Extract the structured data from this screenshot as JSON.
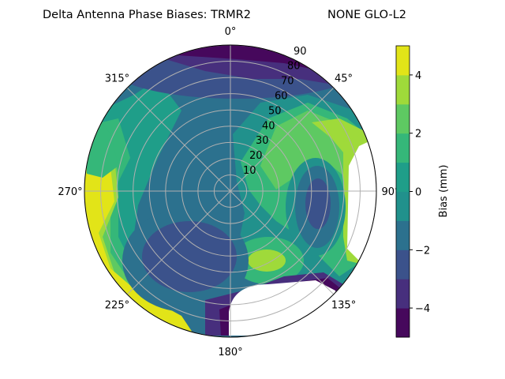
{
  "chart_data": {
    "type": "heatmap",
    "subtype": "polar filled contour",
    "title_left": "Delta Antenna Phase Biases: TRMR2",
    "title_right": "NONE GLO-L2",
    "angular_ticks": [
      "0°",
      "45°",
      "90°",
      "135°",
      "180°",
      "225°",
      "270°",
      "315°"
    ],
    "angular_direction": "clockwise, 0° at top",
    "radial_ticks": [
      10,
      20,
      30,
      40,
      50,
      60,
      70,
      80,
      90
    ],
    "radial_range": [
      0,
      90
    ],
    "grid": true,
    "colorbar": {
      "label": "Bias (mm)",
      "range": [
        -5,
        5
      ],
      "levels": [
        -5,
        -4,
        -3,
        -2,
        -1,
        0,
        1,
        2,
        3,
        4,
        5
      ],
      "ticks": [
        -4,
        -2,
        0,
        2,
        4
      ],
      "colormap": "viridis",
      "band_colors": [
        "#46085c",
        "#472f7d",
        "#3b528b",
        "#2c718e",
        "#21918c",
        "#1f9e89",
        "#35b779",
        "#5ec962",
        "#9fda3a",
        "#e2e418"
      ],
      "placement": "right"
    }
  }
}
